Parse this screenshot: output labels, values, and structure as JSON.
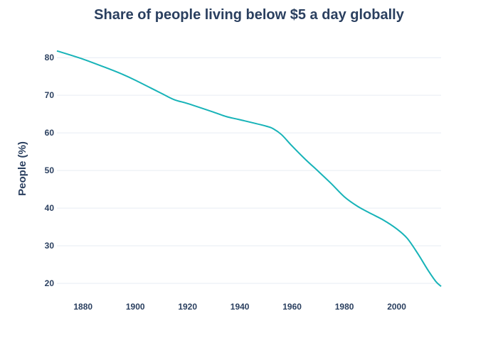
{
  "chart_data": {
    "type": "line",
    "title": "Share of people living below $5 a day globally",
    "xlabel": "",
    "ylabel": "People (%)",
    "xlim": [
      1870,
      2017
    ],
    "ylim": [
      17,
      84
    ],
    "x_ticks": [
      1880,
      1900,
      1920,
      1940,
      1960,
      1980,
      2000
    ],
    "y_ticks": [
      20,
      30,
      40,
      50,
      60,
      70,
      80
    ],
    "grid": true,
    "legend": "none",
    "series": [
      {
        "color": "#17b3b8",
        "x": [
          1870,
          1880,
          1890,
          1895,
          1900,
          1910,
          1915,
          1920,
          1930,
          1935,
          1940,
          1950,
          1953,
          1956,
          1960,
          1965,
          1970,
          1975,
          1980,
          1985,
          1990,
          1995,
          2000,
          2004,
          2008,
          2012,
          2015,
          2017
        ],
        "y": [
          81.8,
          79.6,
          77.0,
          75.6,
          74.0,
          70.5,
          68.8,
          67.8,
          65.5,
          64.3,
          63.5,
          61.8,
          61.0,
          59.5,
          56.5,
          53.0,
          49.8,
          46.5,
          43.0,
          40.5,
          38.6,
          36.8,
          34.5,
          32.0,
          28.0,
          23.5,
          20.5,
          19.2
        ]
      }
    ]
  }
}
